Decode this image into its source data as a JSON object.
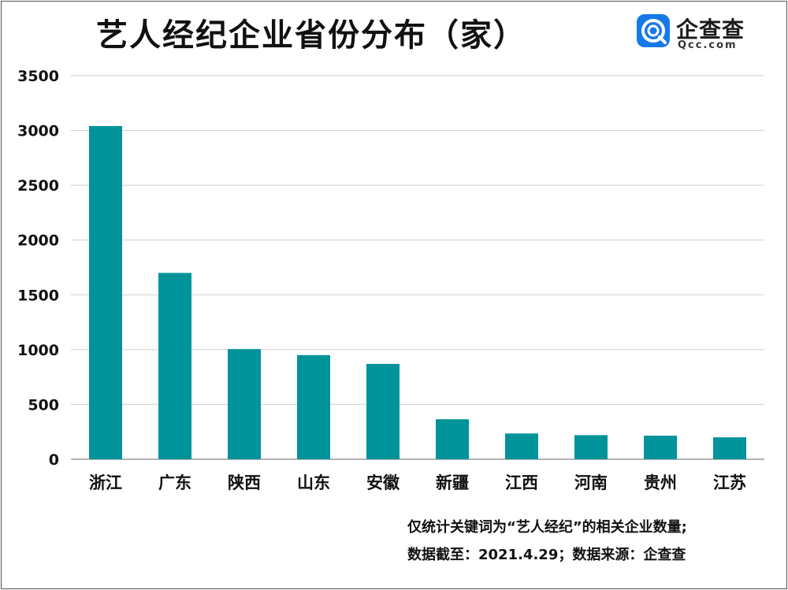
{
  "logo": {
    "name": "企查查",
    "sub": "Qcc.com",
    "colors": {
      "brand": "#1579e6"
    },
    "icon": "qcc-logo-icon"
  },
  "notes": [
    "仅统计关键词为“艺人经纪”的相关企业数量;",
    "数据截至：2021.4.29；数据来源：企查查"
  ],
  "chart_data": {
    "type": "bar",
    "title": "艺人经纪企业省份分布（家）",
    "categories": [
      "浙江",
      "广东",
      "陕西",
      "山东",
      "安徽",
      "新疆",
      "江西",
      "河南",
      "贵州",
      "江苏"
    ],
    "values": [
      3040,
      1700,
      1005,
      950,
      870,
      365,
      235,
      220,
      215,
      200
    ],
    "ylim": [
      0,
      3500
    ],
    "yticks": [
      0,
      500,
      1000,
      1500,
      2000,
      2500,
      3000,
      3500
    ],
    "grid": true,
    "legend": "none",
    "xlabel": "",
    "ylabel": "",
    "colors": {
      "bar": "#00949a",
      "grid": "#cfcfcf",
      "axis": "#9a9a9a"
    }
  }
}
